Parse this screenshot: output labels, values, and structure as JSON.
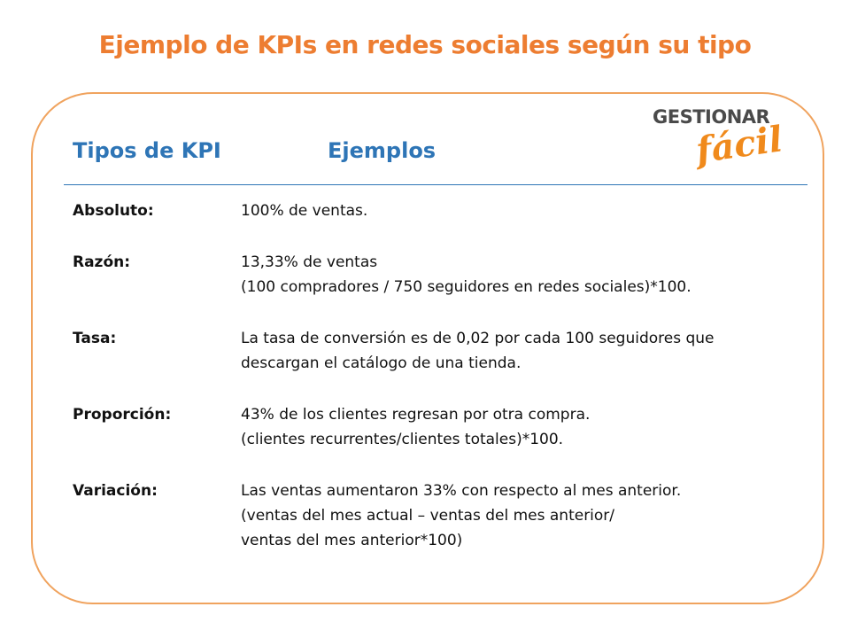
{
  "header": {
    "title": "Ejemplo de KPIs en redes sociales según su tipo"
  },
  "logo": {
    "line1": "GESTIONAR",
    "line2": "fácil"
  },
  "table": {
    "columns": [
      "Tipos de KPI",
      "Ejemplos"
    ],
    "rows": [
      {
        "label": "Absoluto:",
        "lines": [
          "100% de ventas."
        ]
      },
      {
        "label": "Razón:",
        "lines": [
          "13,33% de ventas",
          "(100 compradores / 750 seguidores en redes sociales)*100."
        ]
      },
      {
        "label": "Tasa:",
        "lines": [
          "La tasa de conversión es de 0,02 por cada 100 seguidores que",
          "descargan el catálogo de una tienda."
        ]
      },
      {
        "label": "Proporción:",
        "lines": [
          "43% de los clientes regresan por otra compra.",
          "(clientes recurrentes/clientes totales)*100."
        ]
      },
      {
        "label": "Variación:",
        "lines": [
          "Las ventas aumentaron 33% con respecto al mes anterior.",
          "(ventas del mes actual – ventas del mes anterior/",
          "ventas del mes anterior*100)"
        ]
      }
    ]
  }
}
